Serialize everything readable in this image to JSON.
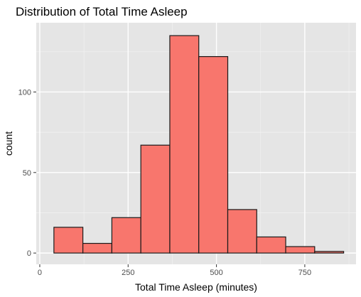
{
  "chart_data": {
    "type": "bar",
    "title": "Distribution of Total Time Asleep",
    "xlabel": "Total Time Asleep (minutes)",
    "ylabel": "count",
    "xlim": [
      -10,
      895
    ],
    "ylim": [
      -7,
      143
    ],
    "xticks": [
      0,
      250,
      500,
      750
    ],
    "xtick_labels": [
      "0",
      "250",
      "500",
      "750"
    ],
    "yticks": [
      0,
      50,
      100
    ],
    "ytick_labels": [
      "0",
      "50",
      "100"
    ],
    "grid": true,
    "bins": [
      {
        "x0": 40,
        "x1": 122,
        "count": 16
      },
      {
        "x0": 122,
        "x1": 204,
        "count": 6
      },
      {
        "x0": 204,
        "x1": 286,
        "count": 22
      },
      {
        "x0": 286,
        "x1": 368,
        "count": 67
      },
      {
        "x0": 368,
        "x1": 450,
        "count": 135
      },
      {
        "x0": 450,
        "x1": 532,
        "count": 122
      },
      {
        "x0": 532,
        "x1": 614,
        "count": 27
      },
      {
        "x0": 614,
        "x1": 696,
        "count": 10
      },
      {
        "x0": 696,
        "x1": 778,
        "count": 4
      },
      {
        "x0": 778,
        "x1": 860,
        "count": 1
      }
    ],
    "colors": {
      "panel_bg": "#e5e5e5",
      "grid_major": "#ffffff",
      "grid_minor": "#f2f2f2",
      "bar_fill": "#f8766d",
      "bar_stroke": "#1a1a1a",
      "tick_mark": "#333333"
    }
  }
}
